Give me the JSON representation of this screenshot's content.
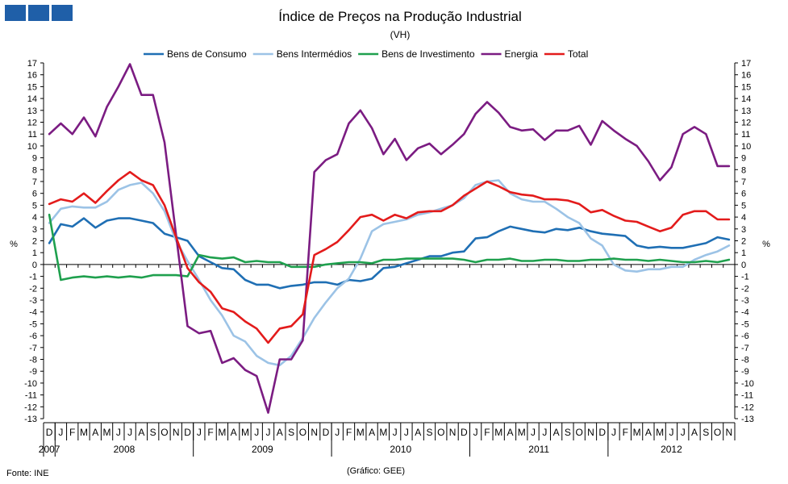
{
  "brand": {
    "color": "#1f5fa8"
  },
  "footer": {
    "source": "Fonte: INE",
    "credit": "(Gráfico: GEE)"
  },
  "chart_data": {
    "type": "line",
    "title": "Índice de Preços na Produção Industrial",
    "subtitle": "(VH)",
    "ylabel": "%",
    "ylabel_right": "%",
    "ylim": [
      -13,
      17
    ],
    "yticks": [
      17,
      16,
      15,
      14,
      13,
      12,
      11,
      10,
      9,
      8,
      7,
      6,
      5,
      4,
      3,
      2,
      1,
      0,
      -1,
      -2,
      -3,
      -4,
      -5,
      -6,
      -7,
      -8,
      -9,
      -10,
      -11,
      -12,
      -13
    ],
    "grid": false,
    "legend": "top",
    "x": [
      "D",
      "J",
      "F",
      "M",
      "A",
      "M",
      "J",
      "J",
      "A",
      "S",
      "O",
      "N",
      "D",
      "J",
      "F",
      "M",
      "A",
      "M",
      "J",
      "J",
      "A",
      "S",
      "O",
      "N",
      "D",
      "J",
      "F",
      "M",
      "A",
      "M",
      "J",
      "J",
      "A",
      "S",
      "O",
      "N",
      "D",
      "J",
      "F",
      "M",
      "A",
      "M",
      "J",
      "J",
      "A",
      "S",
      "O",
      "N",
      "D",
      "J",
      "F",
      "M",
      "A",
      "M",
      "J",
      "J",
      "A",
      "S",
      "O",
      "N"
    ],
    "years": [
      {
        "label": "2007",
        "start": 0,
        "end": 0
      },
      {
        "label": "2008",
        "start": 1,
        "end": 12
      },
      {
        "label": "2009",
        "start": 13,
        "end": 24
      },
      {
        "label": "2010",
        "start": 25,
        "end": 36
      },
      {
        "label": "2011",
        "start": 37,
        "end": 48
      },
      {
        "label": "2012",
        "start": 49,
        "end": 59
      }
    ],
    "series": [
      {
        "name": "Bens de Consumo",
        "color": "#1f6fb4",
        "values": [
          1.8,
          3.4,
          3.2,
          3.9,
          3.1,
          3.7,
          3.9,
          3.9,
          3.7,
          3.5,
          2.6,
          2.3,
          2.0,
          0.7,
          0.2,
          -0.3,
          -0.4,
          -1.3,
          -1.7,
          -1.7,
          -2.0,
          -1.8,
          -1.7,
          -1.5,
          -1.5,
          -1.7,
          -1.3,
          -1.4,
          -1.2,
          -0.3,
          -0.2,
          0.1,
          0.4,
          0.7,
          0.7,
          1.0,
          1.1,
          2.2,
          2.3,
          2.8,
          3.2,
          3.0,
          2.8,
          2.7,
          3.0,
          2.9,
          3.1,
          2.8,
          2.6,
          2.5,
          2.4,
          1.6,
          1.4,
          1.5,
          1.4,
          1.4,
          1.6,
          1.8,
          2.3,
          2.1
        ]
      },
      {
        "name": "Bens Intermédios",
        "color": "#9cc3e6",
        "values": [
          3.5,
          4.7,
          4.9,
          4.8,
          4.8,
          5.3,
          6.3,
          6.7,
          6.9,
          6.0,
          4.5,
          2.0,
          0.3,
          -1.3,
          -3.0,
          -4.3,
          -6.0,
          -6.5,
          -7.7,
          -8.3,
          -8.5,
          -7.7,
          -6.2,
          -4.5,
          -3.2,
          -2.0,
          -1.2,
          0.5,
          2.8,
          3.4,
          3.6,
          3.8,
          4.2,
          4.4,
          4.7,
          5.0,
          5.6,
          6.7,
          7.0,
          7.1,
          6.0,
          5.5,
          5.3,
          5.3,
          4.7,
          4.0,
          3.5,
          2.2,
          1.6,
          0.0,
          -0.5,
          -0.6,
          -0.4,
          -0.4,
          -0.2,
          -0.2,
          0.4,
          0.8,
          1.1,
          1.6
        ]
      },
      {
        "name": "Bens de Investimento",
        "color": "#1fa04e",
        "values": [
          4.2,
          -1.3,
          -1.1,
          -1.0,
          -1.1,
          -1.0,
          -1.1,
          -1.0,
          -1.1,
          -0.9,
          -0.9,
          -0.9,
          -1.0,
          0.8,
          0.6,
          0.5,
          0.6,
          0.2,
          0.3,
          0.2,
          0.2,
          -0.2,
          -0.2,
          -0.2,
          0.0,
          0.1,
          0.2,
          0.2,
          0.1,
          0.4,
          0.4,
          0.5,
          0.5,
          0.5,
          0.5,
          0.5,
          0.4,
          0.2,
          0.4,
          0.4,
          0.5,
          0.3,
          0.3,
          0.4,
          0.4,
          0.3,
          0.3,
          0.4,
          0.4,
          0.5,
          0.4,
          0.4,
          0.3,
          0.4,
          0.3,
          0.2,
          0.2,
          0.3,
          0.2,
          0.4
        ]
      },
      {
        "name": "Energia",
        "color": "#7b1c82",
        "values": [
          11.0,
          11.9,
          11.0,
          12.4,
          10.8,
          13.3,
          15.0,
          16.9,
          14.3,
          14.3,
          10.3,
          2.5,
          -5.2,
          -5.8,
          -5.6,
          -8.3,
          -7.9,
          -8.9,
          -9.4,
          -12.5,
          -8.0,
          -8.0,
          -6.4,
          7.8,
          8.8,
          9.3,
          11.9,
          13.0,
          11.5,
          9.3,
          10.6,
          8.8,
          9.8,
          10.2,
          9.3,
          10.1,
          11.0,
          12.7,
          13.7,
          12.8,
          11.6,
          11.3,
          11.4,
          10.5,
          11.3,
          11.3,
          11.7,
          10.1,
          12.1,
          11.3,
          10.6,
          10.0,
          8.7,
          7.1,
          8.2,
          11.0,
          11.6,
          11.0,
          8.3,
          8.3
        ]
      },
      {
        "name": "Total",
        "color": "#e31b1b",
        "values": [
          5.1,
          5.5,
          5.3,
          6.0,
          5.2,
          6.2,
          7.1,
          7.8,
          7.1,
          6.7,
          5.0,
          2.3,
          -0.3,
          -1.5,
          -2.3,
          -3.7,
          -4.0,
          -4.8,
          -5.4,
          -6.6,
          -5.4,
          -5.2,
          -4.2,
          0.8,
          1.3,
          1.9,
          2.9,
          4.0,
          4.2,
          3.7,
          4.2,
          3.9,
          4.4,
          4.5,
          4.5,
          5.0,
          5.8,
          6.4,
          7.0,
          6.6,
          6.1,
          5.9,
          5.8,
          5.5,
          5.5,
          5.4,
          5.1,
          4.4,
          4.6,
          4.1,
          3.7,
          3.6,
          3.2,
          2.8,
          3.1,
          4.2,
          4.5,
          4.5,
          3.8,
          3.8
        ]
      }
    ]
  }
}
